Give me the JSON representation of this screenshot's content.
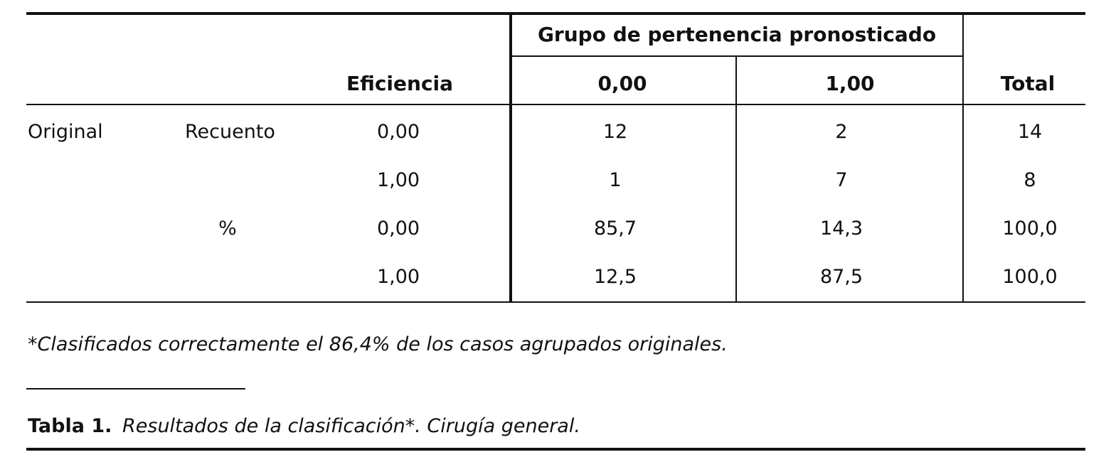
{
  "table": {
    "header": {
      "group_title": "Grupo de pertenencia pronosticado",
      "eficiencia": "Eficiencia",
      "col_0": "0,00",
      "col_1": "1,00",
      "total": "Total"
    },
    "rows": [
      {
        "section": "Original",
        "measure": "Recuento",
        "eficiencia": "0,00",
        "v0": "12",
        "v1": "2",
        "total": "14"
      },
      {
        "section": "",
        "measure": "",
        "eficiencia": "1,00",
        "v0": "1",
        "v1": "7",
        "total": "8"
      },
      {
        "section": "",
        "measure": "%",
        "eficiencia": "0,00",
        "v0": "85,7",
        "v1": "14,3",
        "total": "100,0"
      },
      {
        "section": "",
        "measure": "",
        "eficiencia": "1,00",
        "v0": "12,5",
        "v1": "87,5",
        "total": "100,0"
      }
    ]
  },
  "footnote": "*Clasificados correctamente el 86,4% de los casos agrupados originales.",
  "caption": {
    "label": "Tabla 1.",
    "text": "Resultados de la clasificación*. Cirugía general."
  }
}
